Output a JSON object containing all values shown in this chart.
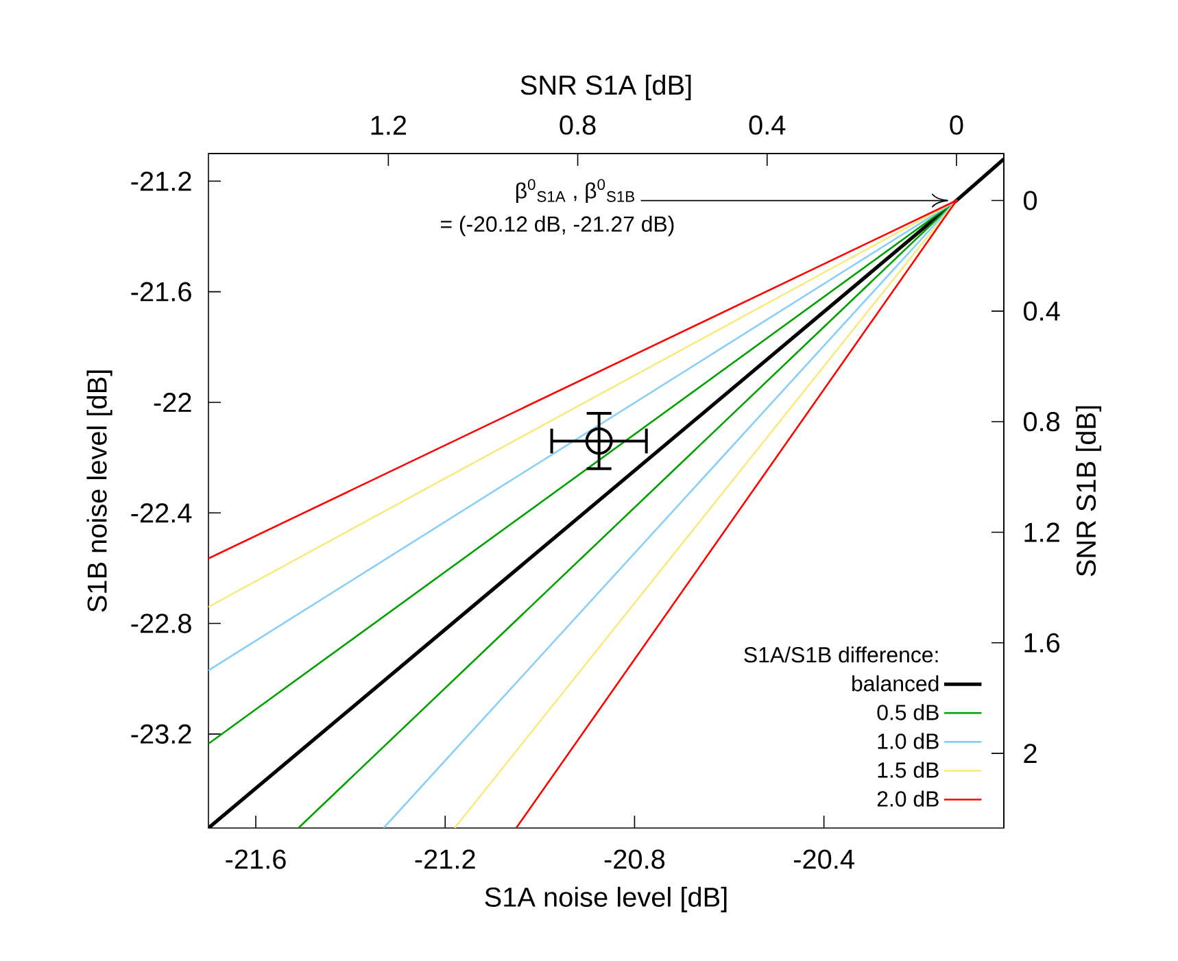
{
  "chart_data": {
    "type": "line",
    "xlabel": "S1A noise level [dB]",
    "ylabel": "S1B noise level [dB]",
    "x2label": "SNR S1A [dB]",
    "y2label": "SNR S1B [dB]",
    "legend_title": "S1A/S1B difference:",
    "legend": "bottom right",
    "xlim": [
      -21.7,
      -20.02
    ],
    "xticks": [
      -21.6,
      -21.2,
      -20.8,
      -20.4
    ],
    "ylim": [
      -23.54,
      -21.1
    ],
    "yticks": [
      -23.2,
      -22.8,
      -22.4,
      -22,
      -21.6,
      -21.2
    ],
    "x2lim": [
      1.58,
      -0.1
    ],
    "x2ticks": [
      1.2,
      0.8,
      0.4,
      0
    ],
    "y2lim": [
      2.27,
      -0.17
    ],
    "y2ticks": [
      0,
      0.4,
      0.8,
      1.2,
      1.6,
      2
    ],
    "annotations": [
      {
        "text": "β$^{0}$$_{S1A}$ , β$^{0}$$_{S1B}$",
        "x": -20.12,
        "y": -21.27
      },
      "= (-20.12 dB, -21.27 dB)"
    ],
    "series": [
      {
        "name": "balanced",
        "color": "#000000",
        "x": [
          -21.7,
          -20.12,
          -20.02
        ],
        "values": [
          -23.54,
          -21.27,
          -21.12
        ]
      },
      {
        "name": "0.5 dB",
        "color": "#00a000",
        "x": [
          -21.7,
          -20.12,
          -21.51
        ],
        "values": [
          -23.235,
          -21.27,
          -23.54
        ]
      },
      {
        "name": "1.0 dB",
        "color": "#87cefa",
        "x": [
          -21.7,
          -20.12,
          -21.33
        ],
        "values": [
          -22.97,
          -21.27,
          -23.54
        ]
      },
      {
        "name": "1.5 dB",
        "color": "#f8ea7c",
        "x": [
          -21.7,
          -20.12,
          -21.18
        ],
        "values": [
          -22.74,
          -21.27,
          -23.54
        ]
      },
      {
        "name": "2.0 dB",
        "color": "#ff0000",
        "x": [
          -21.7,
          -20.12,
          -21.05
        ],
        "values": [
          -22.565,
          -21.27,
          -23.54
        ]
      },
      {
        "type": "scatter",
        "color": "#000000",
        "marker": "circle",
        "x": [
          -20.875
        ],
        "values": [
          -22.14
        ],
        "errors": [
          0.1
        ],
        "xerrors": [
          0.1
        ]
      }
    ]
  }
}
